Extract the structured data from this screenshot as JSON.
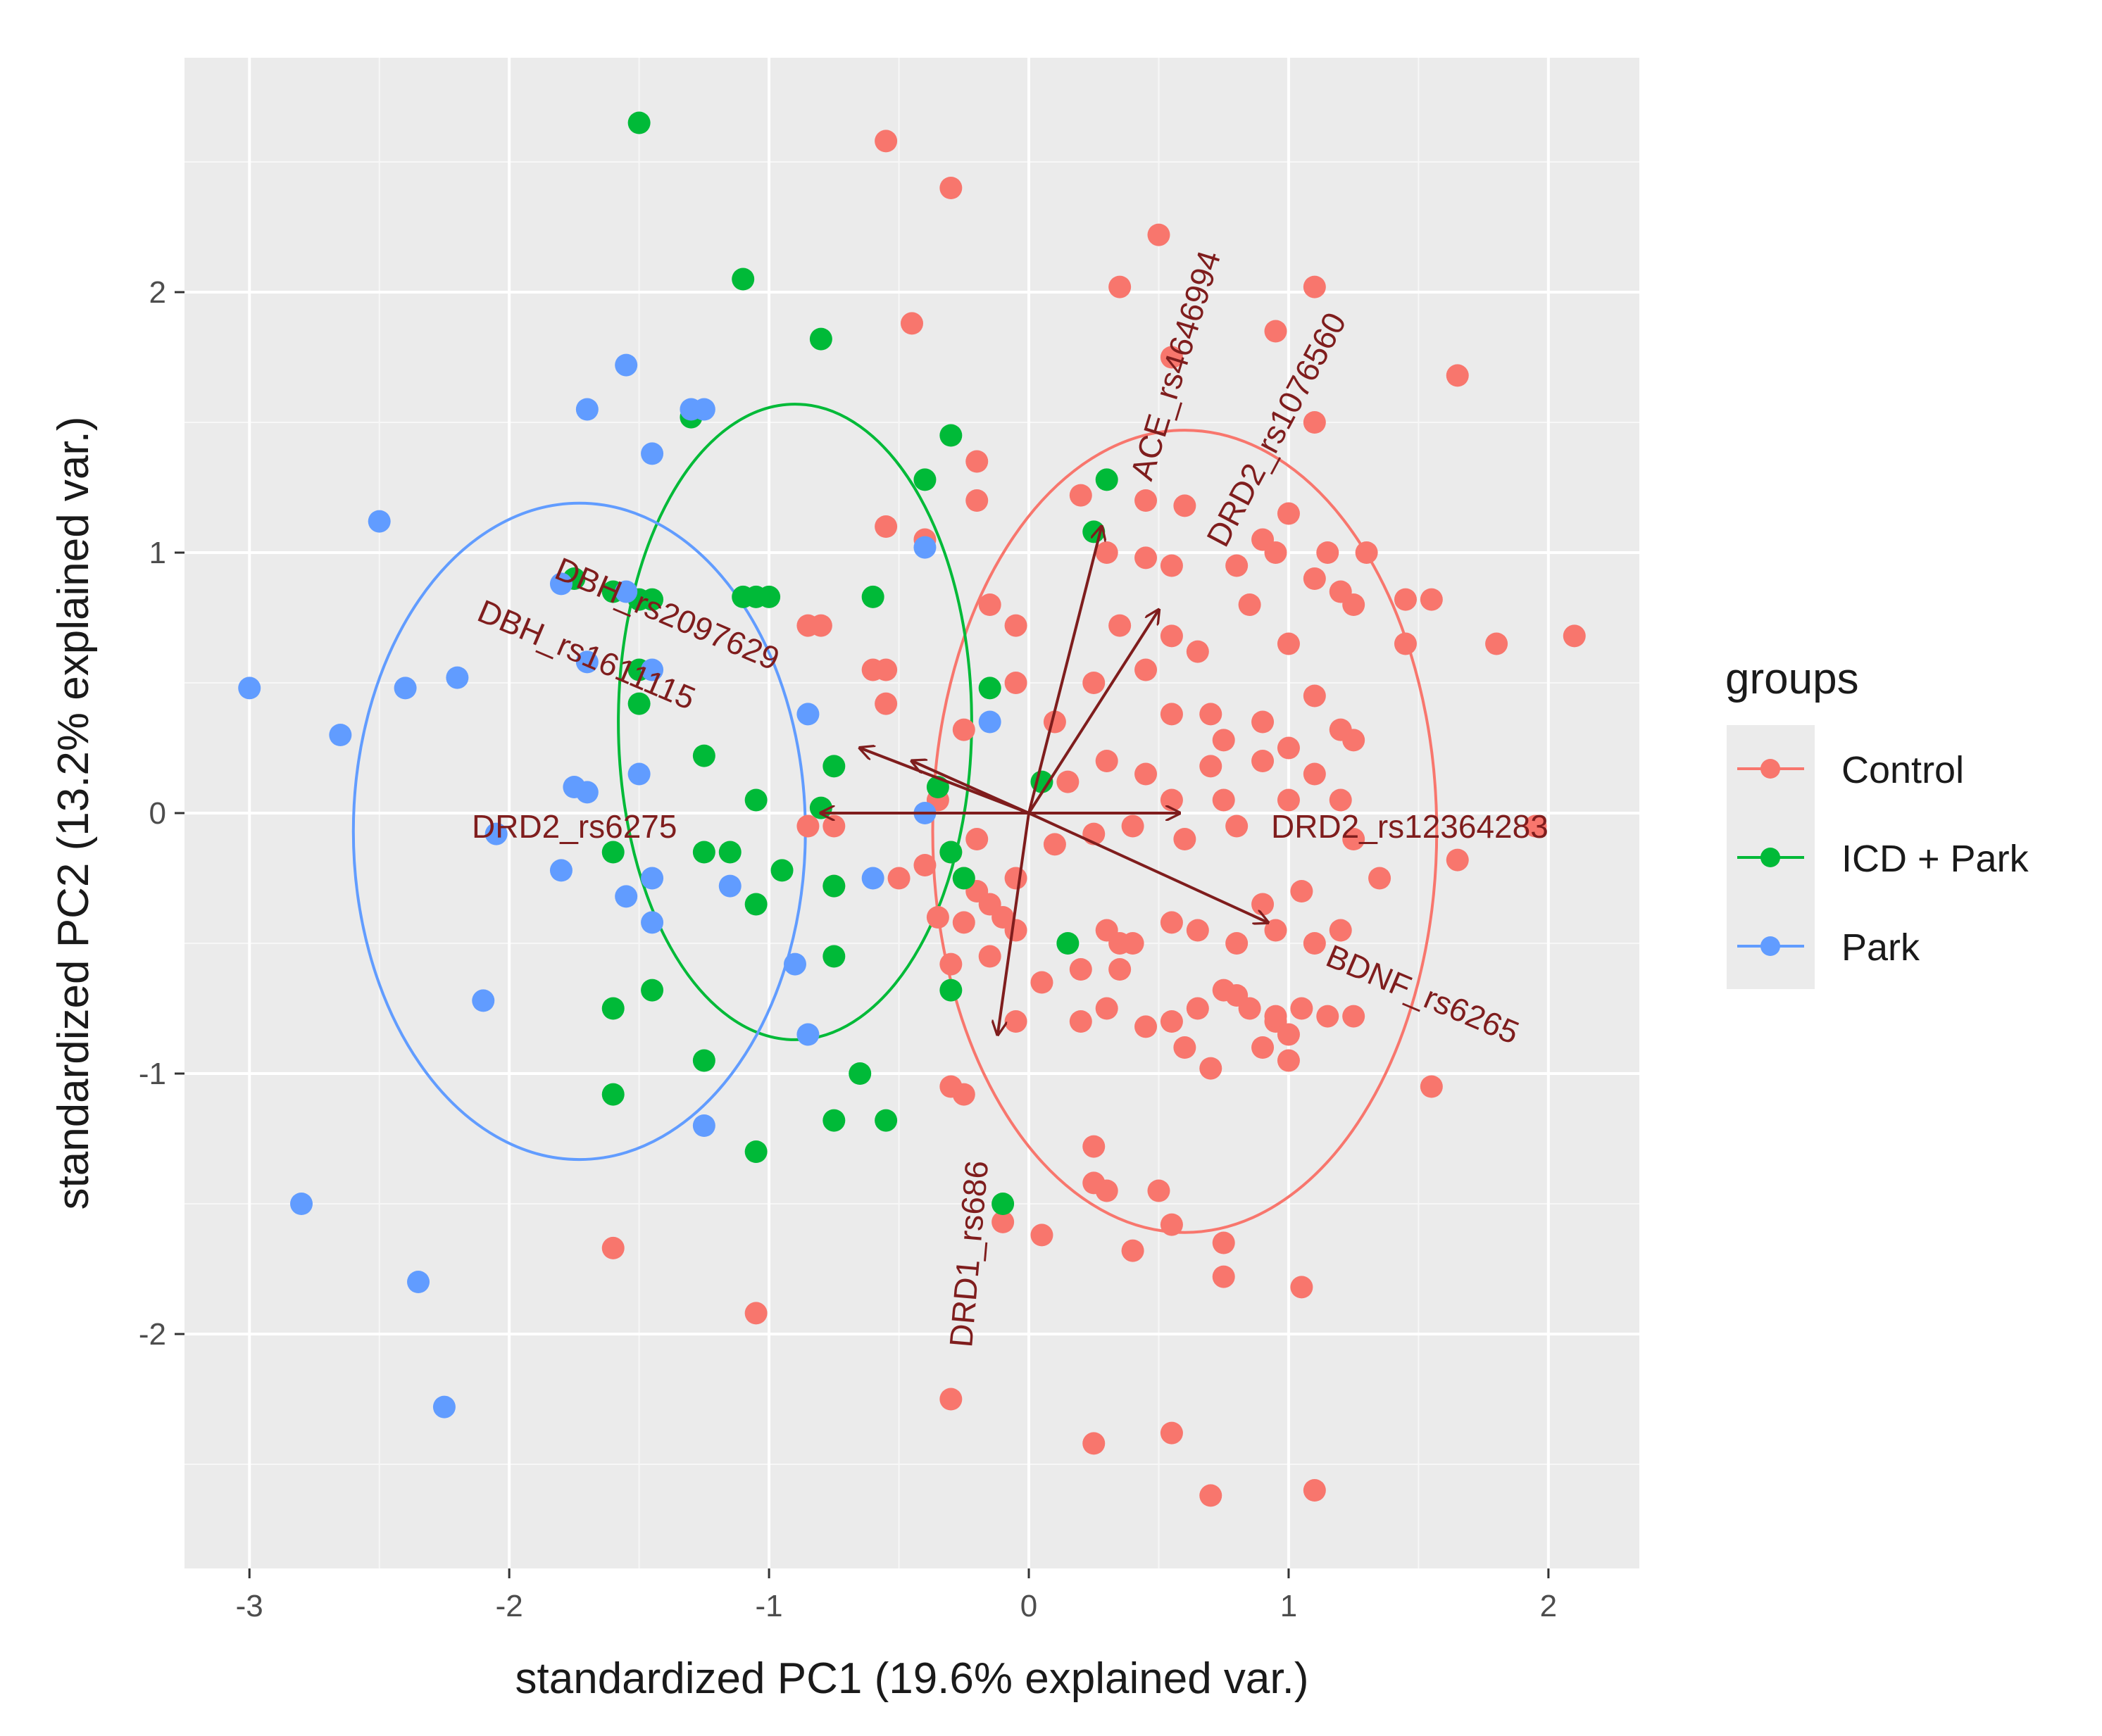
{
  "chart_data": {
    "type": "scatter",
    "subtype": "pca-biplot",
    "xlabel": "standardized PC1 (19.6% explained var.)",
    "ylabel": "standardized PC2 (13.2% explained var.)",
    "xlim": [
      -3.25,
      2.35
    ],
    "ylim": [
      -2.9,
      2.9
    ],
    "xticks": [
      -3,
      -2,
      -1,
      0,
      1,
      2
    ],
    "yticks": [
      -2,
      -1,
      0,
      1,
      2
    ],
    "xtick_labels": [
      "-3",
      "-2",
      "-1",
      "0",
      "1",
      "2"
    ],
    "ytick_labels": [
      "-2",
      "-1",
      "0",
      "1",
      "2"
    ],
    "grid": true,
    "legend": {
      "title": "groups",
      "position": "right",
      "entries": [
        "Control",
        "ICD + Park",
        "Park"
      ]
    },
    "series": [
      {
        "name": "Control",
        "color": "#F8766D",
        "ellipse": {
          "cx": 0.6,
          "cy": -0.07,
          "rx": 0.97,
          "ry": 1.54
        },
        "points": [
          [
            -0.55,
            2.58
          ],
          [
            -0.3,
            2.4
          ],
          [
            -0.45,
            1.88
          ],
          [
            0.35,
            2.02
          ],
          [
            0.5,
            2.22
          ],
          [
            0.95,
            1.85
          ],
          [
            1.1,
            2.02
          ],
          [
            1.65,
            1.68
          ],
          [
            1.1,
            1.5
          ],
          [
            0.55,
            1.75
          ],
          [
            -0.2,
            1.35
          ],
          [
            -0.2,
            1.2
          ],
          [
            -0.55,
            1.1
          ],
          [
            -0.4,
            1.05
          ],
          [
            0.2,
            1.22
          ],
          [
            0.45,
            1.2
          ],
          [
            0.6,
            1.18
          ],
          [
            0.9,
            1.05
          ],
          [
            1.0,
            1.15
          ],
          [
            1.15,
            1.0
          ],
          [
            1.3,
            1.0
          ],
          [
            0.3,
            1.0
          ],
          [
            0.45,
            0.98
          ],
          [
            0.55,
            0.95
          ],
          [
            0.8,
            0.95
          ],
          [
            0.95,
            1.0
          ],
          [
            1.1,
            0.9
          ],
          [
            1.2,
            0.85
          ],
          [
            1.25,
            0.8
          ],
          [
            1.45,
            0.82
          ],
          [
            1.55,
            0.82
          ],
          [
            1.8,
            0.65
          ],
          [
            2.1,
            0.68
          ],
          [
            1.45,
            0.65
          ],
          [
            1.0,
            0.65
          ],
          [
            0.85,
            0.8
          ],
          [
            0.55,
            0.68
          ],
          [
            -0.15,
            0.8
          ],
          [
            -0.05,
            0.72
          ],
          [
            0.35,
            0.72
          ],
          [
            -0.85,
            0.72
          ],
          [
            -0.8,
            0.72
          ],
          [
            -0.6,
            0.55
          ],
          [
            -0.55,
            0.55
          ],
          [
            -0.55,
            0.42
          ],
          [
            -0.25,
            0.32
          ],
          [
            -0.05,
            0.5
          ],
          [
            0.1,
            0.35
          ],
          [
            0.25,
            0.5
          ],
          [
            0.45,
            0.55
          ],
          [
            0.65,
            0.62
          ],
          [
            0.7,
            0.38
          ],
          [
            0.75,
            0.28
          ],
          [
            0.9,
            0.35
          ],
          [
            1.0,
            0.25
          ],
          [
            1.1,
            0.45
          ],
          [
            1.2,
            0.32
          ],
          [
            1.25,
            0.28
          ],
          [
            0.55,
            0.38
          ],
          [
            0.45,
            0.15
          ],
          [
            0.3,
            0.2
          ],
          [
            0.15,
            0.12
          ],
          [
            0.55,
            0.05
          ],
          [
            0.7,
            0.18
          ],
          [
            0.75,
            0.05
          ],
          [
            0.9,
            0.2
          ],
          [
            1.0,
            0.05
          ],
          [
            1.1,
            0.15
          ],
          [
            1.2,
            0.05
          ],
          [
            1.25,
            -0.1
          ],
          [
            0.8,
            -0.05
          ],
          [
            0.6,
            -0.1
          ],
          [
            0.4,
            -0.05
          ],
          [
            0.25,
            -0.08
          ],
          [
            0.1,
            -0.12
          ],
          [
            -0.2,
            -0.1
          ],
          [
            -0.3,
            -0.15
          ],
          [
            -0.4,
            -0.2
          ],
          [
            -0.5,
            -0.25
          ],
          [
            -0.85,
            -0.05
          ],
          [
            -0.75,
            -0.28
          ],
          [
            -0.25,
            -0.25
          ],
          [
            -0.2,
            -0.3
          ],
          [
            -0.15,
            -0.35
          ],
          [
            -0.1,
            -0.4
          ],
          [
            -0.35,
            -0.4
          ],
          [
            -0.25,
            -0.42
          ],
          [
            -0.05,
            -0.45
          ],
          [
            0.3,
            -0.45
          ],
          [
            0.35,
            -0.5
          ],
          [
            0.4,
            -0.5
          ],
          [
            0.55,
            -0.42
          ],
          [
            0.65,
            -0.45
          ],
          [
            0.8,
            -0.5
          ],
          [
            0.95,
            -0.45
          ],
          [
            1.1,
            -0.5
          ],
          [
            1.2,
            -0.45
          ],
          [
            1.35,
            -0.25
          ],
          [
            1.05,
            -0.3
          ],
          [
            0.9,
            -0.35
          ],
          [
            0.35,
            -0.6
          ],
          [
            0.2,
            -0.6
          ],
          [
            0.05,
            -0.65
          ],
          [
            -0.15,
            -0.55
          ],
          [
            -0.3,
            -0.58
          ],
          [
            -0.05,
            -0.8
          ],
          [
            0.2,
            -0.8
          ],
          [
            0.3,
            -0.75
          ],
          [
            0.45,
            -0.82
          ],
          [
            0.55,
            -0.8
          ],
          [
            0.65,
            -0.75
          ],
          [
            0.75,
            -0.68
          ],
          [
            0.85,
            -0.75
          ],
          [
            0.95,
            -0.8
          ],
          [
            1.0,
            -0.85
          ],
          [
            1.05,
            -0.75
          ],
          [
            1.15,
            -0.78
          ],
          [
            1.25,
            -0.78
          ],
          [
            0.9,
            -0.9
          ],
          [
            1.0,
            -0.95
          ],
          [
            0.8,
            -0.7
          ],
          [
            0.6,
            -0.9
          ],
          [
            0.7,
            -0.98
          ],
          [
            0.95,
            -0.78
          ],
          [
            -0.3,
            -1.05
          ],
          [
            -0.25,
            -1.08
          ],
          [
            0.25,
            -1.28
          ],
          [
            0.25,
            -1.42
          ],
          [
            0.3,
            -1.45
          ],
          [
            0.5,
            -1.45
          ],
          [
            0.55,
            -1.58
          ],
          [
            -0.1,
            -1.57
          ],
          [
            0.05,
            -1.62
          ],
          [
            0.4,
            -1.68
          ],
          [
            0.75,
            -1.65
          ],
          [
            0.75,
            -1.78
          ],
          [
            1.05,
            -1.82
          ],
          [
            -1.6,
            -1.67
          ],
          [
            -1.05,
            -1.92
          ],
          [
            -0.3,
            -2.25
          ],
          [
            0.25,
            -2.42
          ],
          [
            0.55,
            -2.38
          ],
          [
            0.7,
            -2.62
          ],
          [
            1.1,
            -2.6
          ],
          [
            1.55,
            -1.05
          ],
          [
            1.65,
            -0.18
          ],
          [
            -0.75,
            -0.05
          ],
          [
            1.95,
            -0.05
          ],
          [
            -0.35,
            0.05
          ],
          [
            -0.05,
            -0.25
          ]
        ]
      },
      {
        "name": "ICD + Park",
        "color": "#00BA38",
        "ellipse": {
          "cx": -0.9,
          "cy": 0.35,
          "rx": 0.68,
          "ry": 1.22
        },
        "points": [
          [
            -1.5,
            2.65
          ],
          [
            -1.1,
            2.05
          ],
          [
            -0.8,
            1.82
          ],
          [
            -1.3,
            1.52
          ],
          [
            -0.3,
            1.45
          ],
          [
            -0.4,
            1.28
          ],
          [
            0.3,
            1.28
          ],
          [
            0.25,
            1.08
          ],
          [
            -1.75,
            0.9
          ],
          [
            -1.6,
            0.85
          ],
          [
            -1.5,
            0.82
          ],
          [
            -1.45,
            0.82
          ],
          [
            -1.1,
            0.83
          ],
          [
            -1.05,
            0.83
          ],
          [
            -1.0,
            0.83
          ],
          [
            -0.6,
            0.83
          ],
          [
            -1.5,
            0.55
          ],
          [
            -1.5,
            0.42
          ],
          [
            -0.15,
            0.48
          ],
          [
            -1.25,
            0.22
          ],
          [
            -0.75,
            0.18
          ],
          [
            -1.05,
            0.05
          ],
          [
            -0.8,
            0.02
          ],
          [
            -0.35,
            0.1
          ],
          [
            0.05,
            0.12
          ],
          [
            -1.6,
            -0.15
          ],
          [
            -1.25,
            -0.15
          ],
          [
            -1.15,
            -0.15
          ],
          [
            -0.95,
            -0.22
          ],
          [
            -0.75,
            -0.28
          ],
          [
            -1.05,
            -0.35
          ],
          [
            -0.3,
            -0.15
          ],
          [
            -0.25,
            -0.25
          ],
          [
            -0.75,
            -0.55
          ],
          [
            -1.45,
            -0.68
          ],
          [
            -1.6,
            -0.75
          ],
          [
            -0.3,
            -0.68
          ],
          [
            0.15,
            -0.5
          ],
          [
            -1.25,
            -0.95
          ],
          [
            -1.6,
            -1.08
          ],
          [
            -0.65,
            -1.0
          ],
          [
            -0.75,
            -1.18
          ],
          [
            -0.55,
            -1.18
          ],
          [
            -1.05,
            -1.3
          ],
          [
            -0.1,
            -1.5
          ]
        ]
      },
      {
        "name": "Park",
        "color": "#619CFF",
        "ellipse": {
          "cx": -1.73,
          "cy": -0.07,
          "rx": 0.87,
          "ry": 1.26
        },
        "points": [
          [
            -1.55,
            1.72
          ],
          [
            -1.7,
            1.55
          ],
          [
            -1.3,
            1.55
          ],
          [
            -1.25,
            1.55
          ],
          [
            -1.45,
            1.38
          ],
          [
            -2.5,
            1.12
          ],
          [
            -0.4,
            1.02
          ],
          [
            -1.8,
            0.88
          ],
          [
            -1.55,
            0.85
          ],
          [
            -1.7,
            0.58
          ],
          [
            -1.45,
            0.55
          ],
          [
            -3.0,
            0.48
          ],
          [
            -2.4,
            0.48
          ],
          [
            -2.2,
            0.52
          ],
          [
            -2.65,
            0.3
          ],
          [
            -0.85,
            0.38
          ],
          [
            -0.15,
            0.35
          ],
          [
            -1.75,
            0.1
          ],
          [
            -1.7,
            0.08
          ],
          [
            -1.5,
            0.15
          ],
          [
            -0.4,
            0.0
          ],
          [
            -2.05,
            -0.08
          ],
          [
            -1.8,
            -0.22
          ],
          [
            -1.55,
            -0.32
          ],
          [
            -1.45,
            -0.25
          ],
          [
            -1.15,
            -0.28
          ],
          [
            -0.6,
            -0.25
          ],
          [
            -1.45,
            -0.42
          ],
          [
            -0.9,
            -0.58
          ],
          [
            -2.1,
            -0.72
          ],
          [
            -0.85,
            -0.85
          ],
          [
            -1.25,
            -1.2
          ],
          [
            -2.8,
            -1.5
          ],
          [
            -2.35,
            -1.8
          ],
          [
            -2.25,
            -2.28
          ]
        ]
      }
    ],
    "loadings": [
      {
        "label": "ACE_rs4646994",
        "x": 0.28,
        "y": 1.1
      },
      {
        "label": "DRD2_rs1076560",
        "x": 0.5,
        "y": 0.78
      },
      {
        "label": "DBH_rs2097629",
        "x": -0.45,
        "y": 0.2
      },
      {
        "label": "DBH_rs1611115",
        "x": -0.65,
        "y": 0.25
      },
      {
        "label": "DRD2_rs6275",
        "x": -0.8,
        "y": 0.0
      },
      {
        "label": "DRD2_rs12364283",
        "x": 0.58,
        "y": 0.0
      },
      {
        "label": "BDNF_rs6265",
        "x": 0.92,
        "y": -0.42
      },
      {
        "label": "DRD1_rs686",
        "x": -0.12,
        "y": -0.85
      }
    ]
  }
}
